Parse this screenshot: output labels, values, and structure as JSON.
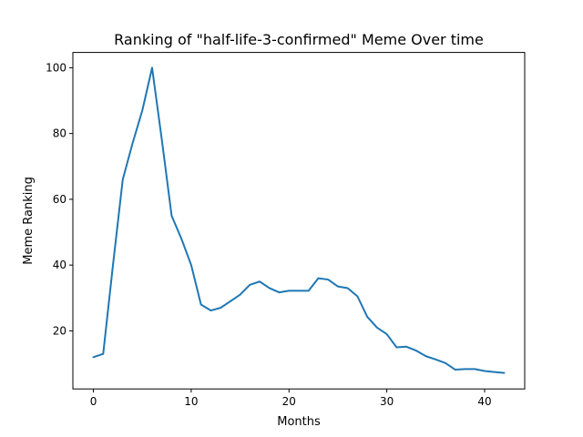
{
  "chart_data": {
    "type": "line",
    "title": "Ranking of \"half-life-3-confirmed\" Meme Over time",
    "xlabel": "Months",
    "ylabel": "Meme Ranking",
    "xlim": [
      -2.1,
      44.1
    ],
    "ylim": [
      2.35,
      104.65
    ],
    "xticks": [
      0,
      10,
      20,
      30,
      40
    ],
    "yticks": [
      20,
      40,
      60,
      80,
      100
    ],
    "grid": false,
    "series": [
      {
        "color": "#1f77b4",
        "x": [
          0,
          1,
          2,
          3,
          4,
          5,
          6,
          7,
          8,
          9,
          10,
          11,
          12,
          13,
          14,
          15,
          16,
          17,
          18,
          19,
          20,
          21,
          22,
          23,
          24,
          25,
          26,
          27,
          28,
          29,
          30,
          31,
          32,
          33,
          34,
          35,
          36,
          37,
          38,
          39,
          40,
          41,
          42
        ],
        "values": [
          12,
          13,
          40,
          66,
          77,
          87,
          100,
          78,
          55,
          48,
          40,
          28,
          26.2,
          27,
          29,
          31,
          34,
          35,
          33,
          31.7,
          32.2,
          32.2,
          32.2,
          36,
          35.6,
          33.5,
          33,
          30.5,
          24.3,
          21,
          19,
          15,
          15.2,
          14,
          12.3,
          11.3,
          10.2,
          8.2,
          8.4,
          8.4,
          7.8,
          7.5,
          7.2
        ]
      }
    ]
  }
}
